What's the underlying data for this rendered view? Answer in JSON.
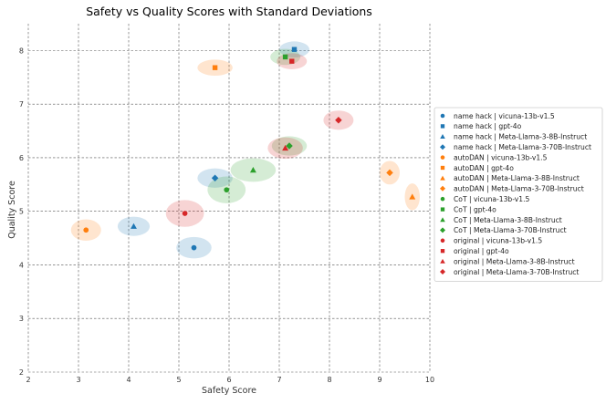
{
  "chart_data": {
    "type": "scatter",
    "title": "Safety vs Quality Scores with Standard Deviations",
    "xlabel": "Safety Score",
    "ylabel": "Quality Score",
    "xlim": [
      2,
      10
    ],
    "ylim": [
      2,
      8.5
    ],
    "xticks": [
      "2",
      "3",
      "4",
      "5",
      "6",
      "7",
      "8",
      "9",
      "10"
    ],
    "yticks": [
      "2",
      "3",
      "4",
      "5",
      "6",
      "7",
      "8"
    ],
    "grid": true,
    "legend_position": "right",
    "colors": {
      "name hack": "#1f77b4",
      "autoDAN": "#ff7f0e",
      "CoT": "#2ca02c",
      "original": "#d62728"
    },
    "markers": {
      "vicuna-13b-v1.5": "circle",
      "gpt-4o": "square",
      "Meta-Llama-3-8B-Instruct": "triangle",
      "Meta-Llama-3-70B-Instruct": "diamond"
    },
    "series": [
      {
        "name": "name hack | vicuna-13b-v1.5",
        "method": "name hack",
        "model": "vicuna-13b-v1.5",
        "x": 5.3,
        "y": 4.32,
        "sx": 0.35,
        "sy": 0.2
      },
      {
        "name": "name hack | gpt-4o",
        "method": "name hack",
        "model": "gpt-4o",
        "x": 7.3,
        "y": 8.02,
        "sx": 0.3,
        "sy": 0.15
      },
      {
        "name": "name hack | Meta-Llama-3-8B-Instruct",
        "method": "name hack",
        "model": "Meta-Llama-3-8B-Instruct",
        "x": 4.1,
        "y": 4.72,
        "sx": 0.32,
        "sy": 0.18
      },
      {
        "name": "name hack | Meta-Llama-3-70B-Instruct",
        "method": "name hack",
        "model": "Meta-Llama-3-70B-Instruct",
        "x": 5.72,
        "y": 5.62,
        "sx": 0.35,
        "sy": 0.18
      },
      {
        "name": "autoDAN | vicuna-13b-v1.5",
        "method": "autoDAN",
        "model": "vicuna-13b-v1.5",
        "x": 3.15,
        "y": 4.65,
        "sx": 0.3,
        "sy": 0.2
      },
      {
        "name": "autoDAN | gpt-4o",
        "method": "autoDAN",
        "model": "gpt-4o",
        "x": 5.72,
        "y": 7.68,
        "sx": 0.35,
        "sy": 0.15
      },
      {
        "name": "autoDAN | Meta-Llama-3-8B-Instruct",
        "method": "autoDAN",
        "model": "Meta-Llama-3-8B-Instruct",
        "x": 9.65,
        "y": 5.27,
        "sx": 0.15,
        "sy": 0.25
      },
      {
        "name": "autoDAN | Meta-Llama-3-70B-Instruct",
        "method": "autoDAN",
        "model": "Meta-Llama-3-70B-Instruct",
        "x": 9.2,
        "y": 5.72,
        "sx": 0.2,
        "sy": 0.22
      },
      {
        "name": "CoT | vicuna-13b-v1.5",
        "method": "CoT",
        "model": "vicuna-13b-v1.5",
        "x": 5.95,
        "y": 5.4,
        "sx": 0.38,
        "sy": 0.25
      },
      {
        "name": "CoT | gpt-4o",
        "method": "CoT",
        "model": "gpt-4o",
        "x": 7.12,
        "y": 7.88,
        "sx": 0.3,
        "sy": 0.15
      },
      {
        "name": "CoT | Meta-Llama-3-8B-Instruct",
        "method": "CoT",
        "model": "Meta-Llama-3-8B-Instruct",
        "x": 6.48,
        "y": 5.77,
        "sx": 0.45,
        "sy": 0.22
      },
      {
        "name": "CoT | Meta-Llama-3-70B-Instruct",
        "method": "CoT",
        "model": "Meta-Llama-3-70B-Instruct",
        "x": 7.2,
        "y": 6.22,
        "sx": 0.35,
        "sy": 0.18
      },
      {
        "name": "original | vicuna-13b-v1.5",
        "method": "original",
        "model": "vicuna-13b-v1.5",
        "x": 5.12,
        "y": 4.96,
        "sx": 0.38,
        "sy": 0.25
      },
      {
        "name": "original | gpt-4o",
        "method": "original",
        "model": "gpt-4o",
        "x": 7.25,
        "y": 7.8,
        "sx": 0.3,
        "sy": 0.15
      },
      {
        "name": "original | Meta-Llama-3-8B-Instruct",
        "method": "original",
        "model": "Meta-Llama-3-8B-Instruct",
        "x": 7.12,
        "y": 6.18,
        "sx": 0.35,
        "sy": 0.2
      },
      {
        "name": "original | Meta-Llama-3-70B-Instruct",
        "method": "original",
        "model": "Meta-Llama-3-70B-Instruct",
        "x": 8.18,
        "y": 6.7,
        "sx": 0.3,
        "sy": 0.18
      }
    ]
  }
}
